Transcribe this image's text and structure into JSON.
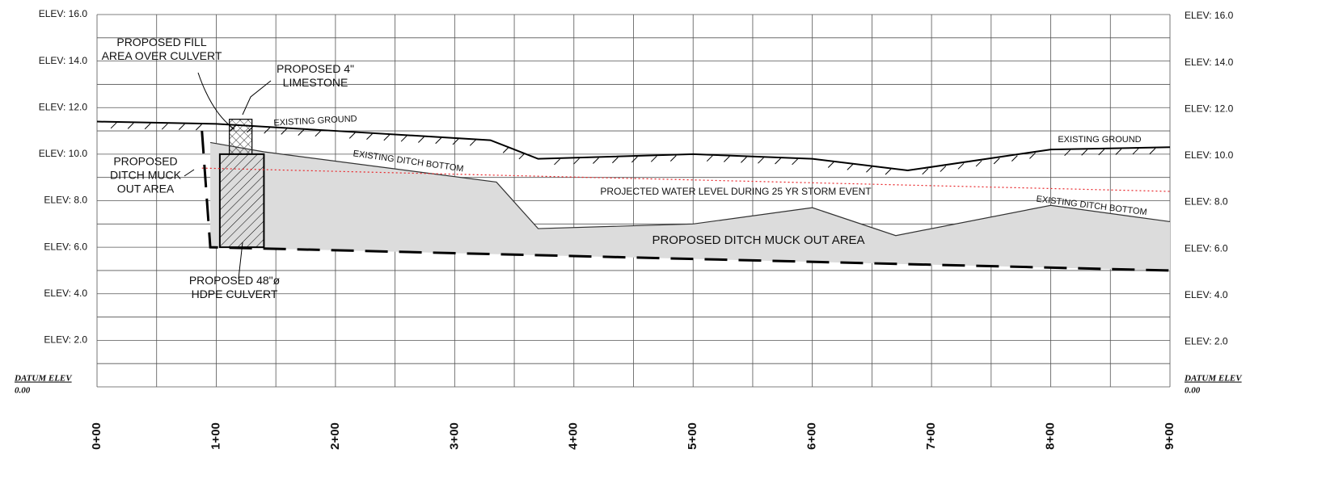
{
  "chart_data": {
    "type": "line",
    "xlim": [
      0,
      900
    ],
    "ylim": [
      0,
      16
    ],
    "xticks": [
      {
        "value": 0,
        "label": "0+00"
      },
      {
        "value": 100,
        "label": "1+00"
      },
      {
        "value": 200,
        "label": "2+00"
      },
      {
        "value": 300,
        "label": "3+00"
      },
      {
        "value": 400,
        "label": "4+00"
      },
      {
        "value": 500,
        "label": "5+00"
      },
      {
        "value": 600,
        "label": "6+00"
      },
      {
        "value": 700,
        "label": "7+00"
      },
      {
        "value": 800,
        "label": "8+00"
      },
      {
        "value": 900,
        "label": "9+00"
      }
    ],
    "minor_xticks": [
      50,
      150,
      250,
      350,
      450,
      550,
      650,
      750,
      850
    ],
    "yticks": [
      {
        "value": 2,
        "label": "ELEV: 2.0"
      },
      {
        "value": 4,
        "label": "ELEV: 4.0"
      },
      {
        "value": 6,
        "label": "ELEV: 6.0"
      },
      {
        "value": 8,
        "label": "ELEV: 8.0"
      },
      {
        "value": 10,
        "label": "ELEV: 10.0"
      },
      {
        "value": 12,
        "label": "ELEV: 12.0"
      },
      {
        "value": 14,
        "label": "ELEV: 14.0"
      },
      {
        "value": 16,
        "label": "ELEV: 16.0"
      }
    ],
    "minor_yticks": [
      0,
      1,
      3,
      5,
      7,
      9,
      11,
      13,
      15
    ],
    "grid": true,
    "datum_label": "DATUM ELEV",
    "datum_value": "0.00",
    "series": [
      {
        "name": "EXISTING GROUND",
        "color": "#000000",
        "x": [
          0,
          100,
          200,
          330,
          370,
          500,
          600,
          680,
          800,
          900
        ],
        "values": [
          11.4,
          11.3,
          11.0,
          10.6,
          9.8,
          10.0,
          9.8,
          9.3,
          10.2,
          10.3
        ]
      },
      {
        "name": "EXISTING DITCH BOTTOM",
        "color": "#333333",
        "x": [
          95,
          140,
          335,
          370,
          500,
          600,
          670,
          800,
          900
        ],
        "values": [
          10.5,
          10.1,
          8.8,
          6.8,
          7.0,
          7.7,
          6.5,
          7.8,
          7.1
        ]
      },
      {
        "name": "PROJECTED WATER LEVEL DURING 25 YR STORM EVENT",
        "color": "#e8262a",
        "x": [
          88,
          900
        ],
        "values": [
          9.4,
          8.4
        ]
      },
      {
        "name": "PROPOSED DITCH MUCK OUT AREA",
        "color": "#000000",
        "x": [
          88,
          95,
          900
        ],
        "values": [
          11.0,
          6.0,
          5.0
        ]
      }
    ],
    "culvert_x": [
      103,
      140
    ],
    "culvert_y": [
      6,
      10
    ],
    "limestone_x": [
      111,
      130
    ],
    "limestone_y": [
      10,
      11.5
    ],
    "annotations": [
      [
        "PROPOSED FILL",
        "AREA OVER CULVERT"
      ],
      [
        "PROPOSED 4\"",
        "LIMESTONE"
      ],
      [
        "PROPOSED",
        "DITCH MUCK",
        "OUT AREA"
      ],
      [
        "PROPOSED 48\"ø",
        "HDPE CULVERT"
      ]
    ]
  }
}
